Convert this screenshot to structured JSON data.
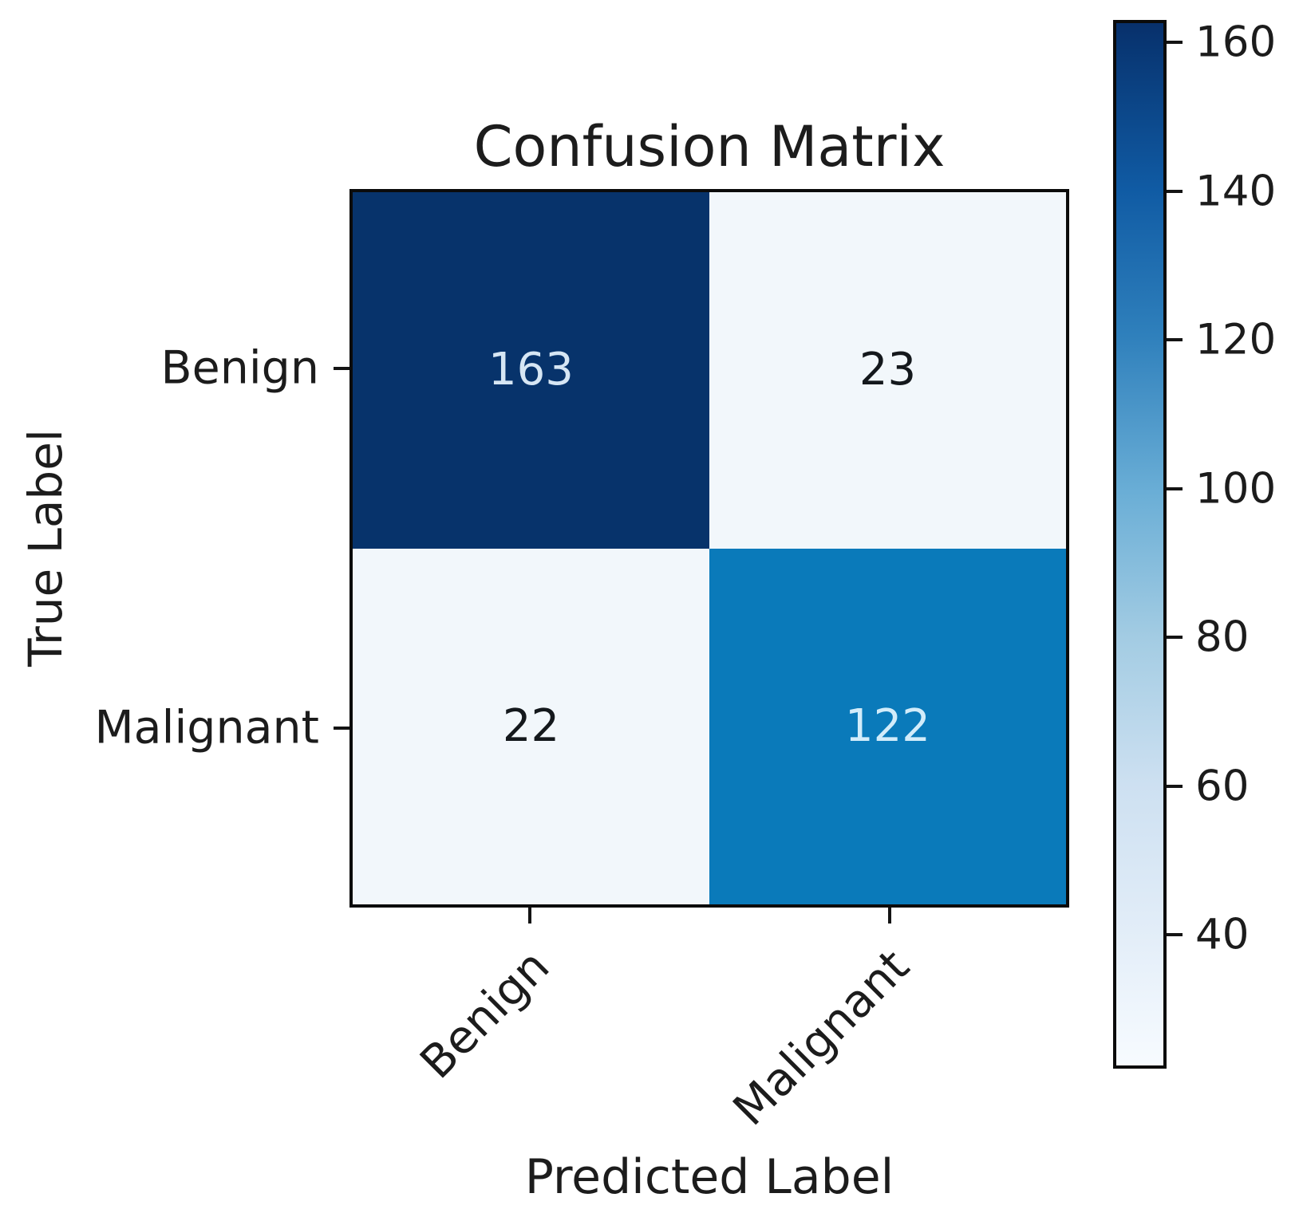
{
  "chart_data": {
    "type": "heatmap",
    "title": "Confusion Matrix",
    "xlabel": "Predicted Label",
    "ylabel": "True Label",
    "x_categories": [
      "Benign",
      "Malignant"
    ],
    "y_categories": [
      "Benign",
      "Malignant"
    ],
    "matrix": [
      [
        163,
        23
      ],
      [
        22,
        122
      ]
    ],
    "vmin": 22,
    "vmax": 163,
    "colormap": "Blues",
    "grid": false,
    "colorbar_position": "right",
    "colorbar_ticks_top_to_bottom": [
      160,
      140,
      120,
      100,
      80,
      60,
      40
    ],
    "cell_colors": [
      [
        "#07336b",
        "#f2f7fb"
      ],
      [
        "#f2f7fb",
        "#0a7aba"
      ]
    ],
    "cell_text_colors": [
      [
        "#d6e6f4",
        "#14181c"
      ],
      [
        "#14181c",
        "#d2ecfa"
      ]
    ],
    "colorbar_gradient_stops": [
      {
        "at": 0.0,
        "color": "#f7fbff"
      },
      {
        "at": 0.13,
        "color": "#e2edf8"
      },
      {
        "at": 0.27,
        "color": "#cde0f1"
      },
      {
        "at": 0.41,
        "color": "#a3cce3"
      },
      {
        "at": 0.55,
        "color": "#6aaed6"
      },
      {
        "at": 0.7,
        "color": "#2f80bc"
      },
      {
        "at": 0.84,
        "color": "#105ba4"
      },
      {
        "at": 0.98,
        "color": "#083673"
      },
      {
        "at": 1.0,
        "color": "#08306b"
      }
    ],
    "frame_color": "#0b0b0b",
    "background_color": "#ffffff"
  }
}
